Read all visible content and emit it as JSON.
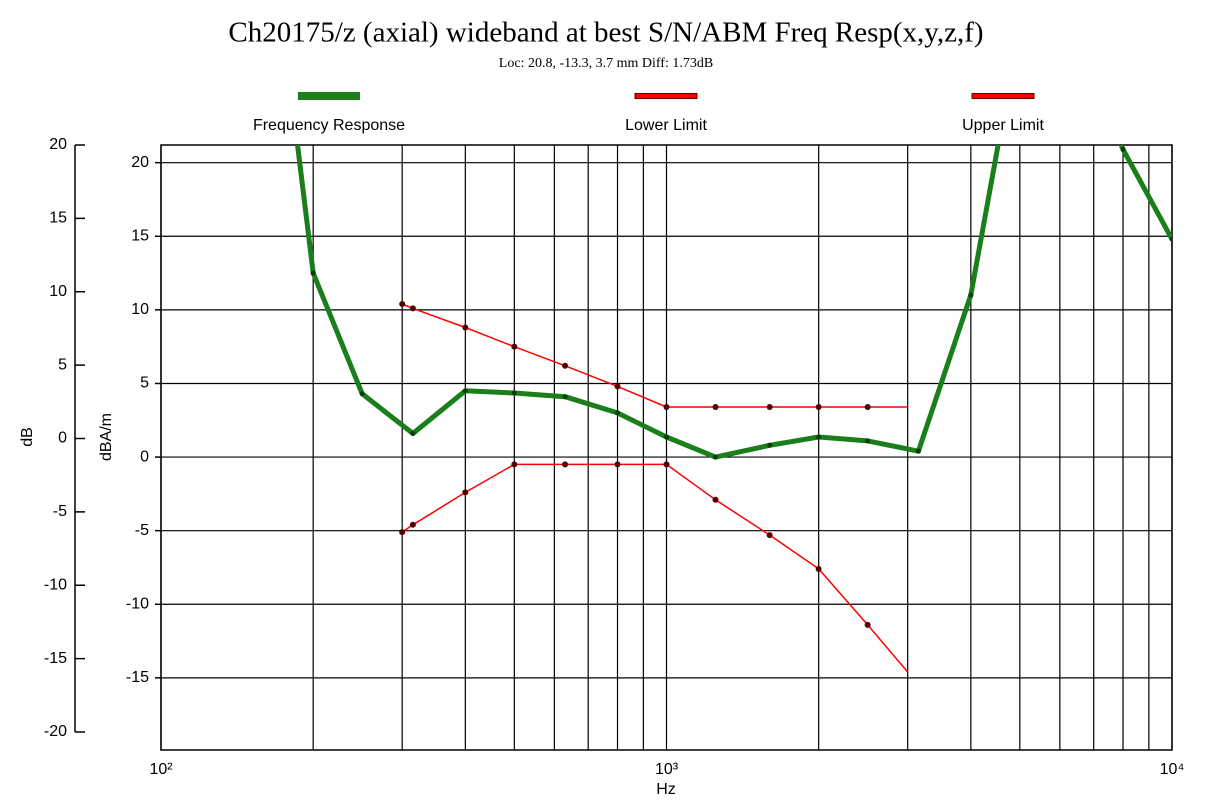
{
  "chart_data": {
    "type": "line",
    "title": "Ch20175/z (axial) wideband at best S/N/ABM Freq Resp(x,y,z,f)",
    "subtitle": "Loc: 20.8, -13.3, 3.7 mm Diff: 1.73dB",
    "xlabel": "Hz",
    "ylabel": "dB",
    "y2label": "dBA/m",
    "xscale": "log",
    "xlim": [
      100,
      10000
    ],
    "xticks": [
      {
        "value": 100,
        "label": "10²"
      },
      {
        "value": 1000,
        "label": "10³"
      },
      {
        "value": 10000,
        "label": "10⁴"
      }
    ],
    "xminorticks": [
      200,
      300,
      400,
      500,
      600,
      700,
      800,
      900,
      2000,
      3000,
      4000,
      5000,
      6000,
      7000,
      8000,
      9000
    ],
    "ylim": [
      -20,
      20
    ],
    "yticks": [
      -20,
      -15,
      -10,
      -5,
      0,
      5,
      10,
      15,
      20
    ],
    "y2lim": [
      -19.9,
      21.2
    ],
    "y2ticks": [
      -15,
      -10,
      -5,
      0,
      5,
      10,
      15,
      20
    ],
    "grid": true,
    "legend": "top",
    "series": [
      {
        "name": "Frequency Response",
        "color": "#1a7f1a",
        "axis": "y2",
        "x": [
          185,
          200,
          250,
          315,
          400,
          500,
          630,
          800,
          1000,
          1250,
          1600,
          2000,
          2500,
          3150,
          4000,
          5000,
          6300,
          8000,
          10000
        ],
        "values": [
          22,
          12.5,
          4.3,
          1.6,
          4.5,
          4.35,
          4.1,
          3.0,
          1.36,
          0.0,
          0.8,
          1.36,
          1.1,
          0.4,
          11.0,
          29.3,
          30,
          20.9,
          14.8
        ]
      },
      {
        "name": "Lower Limit",
        "color": "#ff0000",
        "axis": "y2",
        "x": [
          300,
          315,
          400,
          500,
          630,
          800,
          1000,
          1250,
          1600,
          2000,
          2500,
          3000
        ],
        "values": [
          -5.1,
          -4.6,
          -2.4,
          -0.5,
          -0.5,
          -0.5,
          -0.5,
          -2.9,
          -5.3,
          -7.6,
          -11.4,
          -14.6
        ]
      },
      {
        "name": "Upper Limit",
        "color": "#ff0000",
        "axis": "y2",
        "x": [
          300,
          315,
          400,
          500,
          630,
          800,
          1000,
          1250,
          1600,
          2000,
          2500,
          3000
        ],
        "values": [
          10.4,
          10.1,
          8.8,
          7.5,
          6.2,
          4.8,
          3.4,
          3.4,
          3.4,
          3.4,
          3.4,
          3.4
        ]
      }
    ]
  }
}
